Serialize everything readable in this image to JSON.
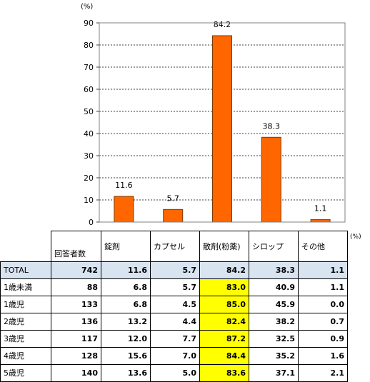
{
  "chart_data": {
    "type": "bar",
    "ylabel": "(%)",
    "ylim": [
      0,
      90
    ],
    "yticks": [
      0,
      10,
      20,
      30,
      40,
      50,
      60,
      70,
      80,
      90
    ],
    "categories": [
      "錠剤",
      "カプセル",
      "散剤(粉薬)",
      "シロップ",
      "その他"
    ],
    "values": [
      11.6,
      5.7,
      84.2,
      38.3,
      1.1
    ],
    "value_labels": [
      "11.6",
      "5.7",
      "84.2",
      "38.3",
      "1.1"
    ],
    "bar_color": "#ff6600",
    "bar_stroke": "#7a3a00",
    "grid": "dashed horizontal"
  },
  "table": {
    "unit": "(%)",
    "respondents_header": "回答者数",
    "columns": [
      "錠剤",
      "カプセル",
      "散剤(粉薬)",
      "シロップ",
      "その他"
    ],
    "rows": [
      {
        "label": "TOTAL",
        "n": "742",
        "values": [
          "11.6",
          "5.7",
          "84.2",
          "38.3",
          "1.1"
        ]
      },
      {
        "label": "1歳未満",
        "n": "88",
        "values": [
          "6.8",
          "5.7",
          "83.0",
          "40.9",
          "1.1"
        ]
      },
      {
        "label": "1歳児",
        "n": "133",
        "values": [
          "6.8",
          "4.5",
          "85.0",
          "45.9",
          "0.0"
        ]
      },
      {
        "label": "2歳児",
        "n": "136",
        "values": [
          "13.2",
          "4.4",
          "82.4",
          "38.2",
          "0.7"
        ]
      },
      {
        "label": "3歳児",
        "n": "117",
        "values": [
          "12.0",
          "7.7",
          "87.2",
          "32.5",
          "0.9"
        ]
      },
      {
        "label": "4歳児",
        "n": "128",
        "values": [
          "15.6",
          "7.0",
          "84.4",
          "35.2",
          "1.6"
        ]
      },
      {
        "label": "5歳児",
        "n": "140",
        "values": [
          "13.6",
          "5.0",
          "83.6",
          "37.1",
          "2.1"
        ]
      }
    ],
    "highlight_column": 2,
    "highlight_color": "#ffff00",
    "total_row_color": "#d9e4f1"
  }
}
